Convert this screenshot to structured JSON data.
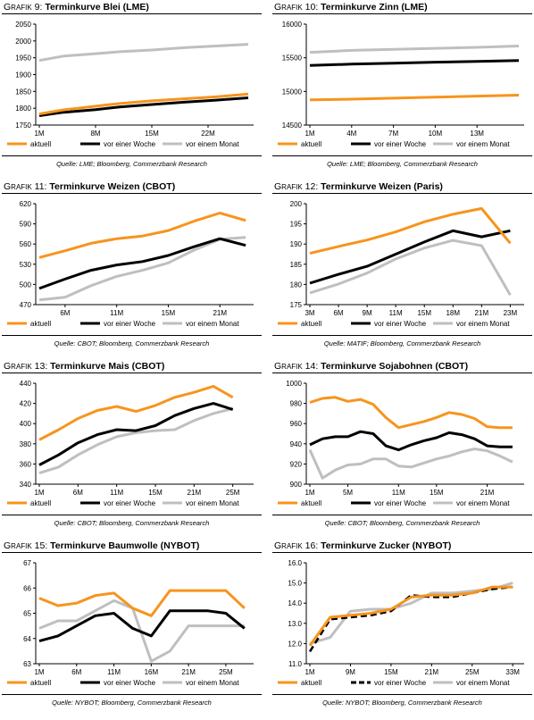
{
  "colors": {
    "aktuell": "#F7941D",
    "woche": "#000000",
    "monat": "#BFBFBF"
  },
  "chart_data": [
    {
      "type": "line",
      "prefix": "Grafik 9",
      "title": "Terminkurve Blei (LME)",
      "source": "Quelle: LME; Bloomberg, Commerzbank Research",
      "ylim": [
        1750,
        2050
      ],
      "yticks": [
        1750,
        1800,
        1850,
        1900,
        1950,
        2000,
        2050
      ],
      "xlabels": [
        "1M",
        "8M",
        "15M",
        "22M"
      ],
      "xlabel_idx": [
        0,
        7,
        14,
        21
      ],
      "xmax": 26,
      "legend": [
        "aktuell",
        "vor einer Woche",
        "vor einem Monat"
      ],
      "series": [
        {
          "x": [
            0,
            3,
            7,
            10,
            14,
            18,
            22,
            26
          ],
          "values": [
            1783,
            1795,
            1806,
            1814,
            1822,
            1828,
            1834,
            1842
          ]
        },
        {
          "x": [
            0,
            3,
            7,
            10,
            14,
            18,
            22,
            26
          ],
          "values": [
            1778,
            1788,
            1796,
            1804,
            1811,
            1818,
            1824,
            1831
          ]
        },
        {
          "x": [
            0,
            3,
            7,
            10,
            14,
            18,
            22,
            26
          ],
          "values": [
            1942,
            1955,
            1962,
            1968,
            1973,
            1980,
            1985,
            1990
          ]
        }
      ]
    },
    {
      "type": "line",
      "prefix": "Grafik 10",
      "title": "Terminkurve Zinn (LME)",
      "source": "Quelle: LME; Bloomberg, Commerzbank Research",
      "ylim": [
        14500,
        16000
      ],
      "yticks": [
        14500,
        15000,
        15500,
        16000
      ],
      "xlabels": [
        "1M",
        "4M",
        "7M",
        "10M",
        "13M"
      ],
      "xlabel_idx": [
        0,
        3,
        6,
        9,
        12
      ],
      "xmax": 15,
      "legend": [
        "aktuell",
        "vor einer Woche",
        "vor einem Monat"
      ],
      "series": [
        {
          "x": [
            0,
            3,
            6,
            9,
            12,
            15
          ],
          "values": [
            14875,
            14885,
            14900,
            14915,
            14930,
            14945
          ]
        },
        {
          "x": [
            0,
            3,
            6,
            9,
            12,
            15
          ],
          "values": [
            15385,
            15405,
            15420,
            15435,
            15445,
            15460
          ]
        },
        {
          "x": [
            0,
            3,
            6,
            9,
            12,
            15
          ],
          "values": [
            15580,
            15610,
            15625,
            15640,
            15655,
            15675
          ]
        }
      ]
    },
    {
      "type": "line",
      "prefix": "Grafik 11",
      "title": "Terminkurve Weizen (CBOT)",
      "source": "Quelle: CBOT; Bloomberg, Commerzbank Research",
      "ylim": [
        470,
        620
      ],
      "yticks": [
        470,
        500,
        530,
        560,
        590,
        620
      ],
      "xlabels": [
        "6M",
        "11M",
        "15M",
        "21M"
      ],
      "xlabel_idx": [
        1,
        3,
        5,
        7
      ],
      "xmax": 8.1,
      "legend": [
        "aktuell",
        "vor einer Woche",
        "vor einem Monat"
      ],
      "series": [
        {
          "x": [
            0,
            1,
            2,
            3,
            4,
            5,
            6,
            7,
            8
          ],
          "values": [
            540,
            550,
            561,
            568,
            572,
            580,
            594,
            606,
            595
          ]
        },
        {
          "x": [
            0,
            1,
            2,
            3,
            4,
            5,
            6,
            7,
            8
          ],
          "values": [
            494,
            508,
            521,
            529,
            534,
            543,
            556,
            568,
            558
          ]
        },
        {
          "x": [
            0,
            1,
            2,
            3,
            4,
            5,
            6,
            7,
            8
          ],
          "values": [
            477,
            481,
            498,
            512,
            521,
            532,
            551,
            567,
            570
          ]
        }
      ]
    },
    {
      "type": "line",
      "prefix": "Grafik 12",
      "title": "Terminkurve Weizen (Paris)",
      "source": "Quelle: MATIF; Bloomberg, Commerzbank Research",
      "ylim": [
        175,
        200
      ],
      "yticks": [
        175,
        180,
        185,
        190,
        195,
        200
      ],
      "xlabels": [
        "3M",
        "6M",
        "9M",
        "11M",
        "15M",
        "18M",
        "21M",
        "23M"
      ],
      "xlabel_idx": [
        0,
        1,
        2,
        3,
        4,
        5,
        6,
        7
      ],
      "xmax": 7.3,
      "legend": [
        "aktuell",
        "vor einer Woche",
        "vor einem Monat"
      ],
      "series": [
        {
          "x": [
            0,
            1,
            2,
            3,
            4,
            5,
            6,
            7
          ],
          "values": [
            187.7,
            189.4,
            191.0,
            193.0,
            195.5,
            197.4,
            198.8,
            190.2
          ]
        },
        {
          "x": [
            0,
            1,
            2,
            3,
            4,
            5,
            6,
            7
          ],
          "values": [
            180.3,
            182.5,
            184.5,
            187.5,
            190.5,
            193.3,
            191.8,
            193.3
          ]
        },
        {
          "x": [
            0,
            1,
            2,
            3,
            4,
            5,
            6,
            7
          ],
          "values": [
            177.9,
            180.1,
            182.8,
            186.3,
            189.0,
            190.9,
            189.6,
            177.4
          ]
        }
      ]
    },
    {
      "type": "line",
      "prefix": "Grafik 13",
      "title": "Terminkurve Mais (CBOT)",
      "source": "Quelle: CBOT; Bloomberg, Commerzbank Research",
      "ylim": [
        340,
        440
      ],
      "yticks": [
        340,
        360,
        380,
        400,
        420,
        440
      ],
      "xlabels": [
        "1M",
        "6M",
        "11M",
        "15M",
        "21M",
        "25M"
      ],
      "xlabel_idx": [
        0,
        2,
        4,
        6,
        8,
        10
      ],
      "xmax": 10.8,
      "legend": [
        "aktuell",
        "vor einer Woche",
        "vor einem Monat"
      ],
      "series": [
        {
          "x": [
            0,
            1,
            2,
            3,
            4,
            5,
            6,
            7,
            8,
            9,
            10
          ],
          "values": [
            384,
            394,
            405,
            413,
            417,
            412,
            418,
            426,
            431,
            437,
            426
          ]
        },
        {
          "x": [
            0,
            1,
            2,
            3,
            4,
            5,
            6,
            7,
            8,
            9,
            10
          ],
          "values": [
            359,
            369,
            381,
            389,
            394,
            393,
            398,
            408,
            415,
            420,
            414
          ]
        },
        {
          "x": [
            0,
            1,
            2,
            3,
            4,
            5,
            6,
            7,
            8,
            9,
            10
          ],
          "values": [
            351,
            357,
            369,
            379,
            387,
            391,
            393,
            394,
            403,
            410,
            415
          ]
        }
      ]
    },
    {
      "type": "line",
      "prefix": "Grafik 14",
      "title": "Terminkurve Sojabohnen (CBOT)",
      "source": "Quelle: CBOT; Bloomberg, Commerzbank Research",
      "ylim": [
        900,
        1000
      ],
      "yticks": [
        900,
        920,
        940,
        960,
        980,
        1000
      ],
      "xlabels": [
        "1M",
        "5M",
        "11M",
        "15M",
        "21M"
      ],
      "xlabel_idx": [
        0,
        3,
        7,
        10,
        14
      ],
      "xmax": 16.5,
      "legend": [
        "aktuell",
        "vor einer Woche",
        "vor einem Monat"
      ],
      "series": [
        {
          "x": [
            0,
            1,
            2,
            3,
            4,
            5,
            6,
            7,
            8,
            9,
            10,
            11,
            12,
            13,
            14,
            15,
            16
          ],
          "values": [
            981,
            985,
            986,
            982,
            984,
            979,
            966,
            956,
            959,
            962,
            966,
            971,
            969,
            965,
            957,
            956,
            956
          ]
        },
        {
          "x": [
            0,
            1,
            2,
            3,
            4,
            5,
            6,
            7,
            8,
            9,
            10,
            11,
            12,
            13,
            14,
            15,
            16
          ],
          "values": [
            939,
            945,
            947,
            947,
            952,
            950,
            938,
            934,
            939,
            943,
            946,
            951,
            949,
            945,
            938,
            937,
            937
          ]
        },
        {
          "x": [
            0,
            1,
            2,
            3,
            4,
            5,
            6,
            7,
            8,
            9,
            10,
            11,
            12,
            13,
            14,
            15,
            16
          ],
          "values": [
            934,
            906,
            914,
            919,
            920,
            925,
            925,
            918,
            917,
            921,
            925,
            928,
            932,
            935,
            933,
            928,
            922
          ]
        }
      ]
    },
    {
      "type": "line",
      "prefix": "Grafik 15",
      "title": "Terminkurve Baumwolle (NYBOT)",
      "source": "Quelle: NYBOT; Bloomberg, Commerzbank Research",
      "ylim": [
        63,
        67
      ],
      "yticks": [
        63,
        64,
        65,
        66,
        67
      ],
      "xlabels": [
        "1M",
        "6M",
        "11M",
        "16M",
        "21M",
        "25M"
      ],
      "xlabel_idx": [
        0,
        2,
        4,
        6,
        8,
        10
      ],
      "xmax": 11.2,
      "legend": [
        "aktuell",
        "vor einer Woche",
        "vor einem Monat"
      ],
      "series": [
        {
          "x": [
            0,
            1,
            2,
            3,
            4,
            5,
            6,
            7,
            8,
            9,
            10,
            11
          ],
          "values": [
            65.6,
            65.3,
            65.4,
            65.7,
            65.8,
            65.2,
            64.9,
            65.9,
            65.9,
            65.9,
            65.9,
            65.2
          ]
        },
        {
          "x": [
            0,
            1,
            2,
            3,
            4,
            5,
            6,
            7,
            8,
            9,
            10,
            11
          ],
          "values": [
            63.9,
            64.1,
            64.5,
            64.9,
            65.0,
            64.4,
            64.1,
            65.1,
            65.1,
            65.1,
            65.0,
            64.4
          ]
        },
        {
          "x": [
            0,
            1,
            2,
            3,
            4,
            5,
            6,
            7,
            8,
            9,
            10,
            11
          ],
          "values": [
            64.4,
            64.7,
            64.7,
            65.1,
            65.5,
            65.2,
            63.1,
            63.5,
            64.5,
            64.5,
            64.5,
            64.5
          ]
        }
      ]
    },
    {
      "type": "line",
      "prefix": "Grafik 16",
      "title": "Terminkurve Zucker (NYBOT)",
      "source": "Quelle: NYBOT; Bloomberg, Commerzbank Research",
      "ylim": [
        11.0,
        16.0
      ],
      "yticks": [
        11.0,
        12.0,
        13.0,
        14.0,
        15.0,
        16.0
      ],
      "ytick_labels": [
        "11.0",
        "12.0",
        "13.0",
        "14.0",
        "15.0",
        "16.0"
      ],
      "xlabels": [
        "1M",
        "9M",
        "15M",
        "21M",
        "25M",
        "33M"
      ],
      "xlabel_idx": [
        0,
        2,
        4,
        6,
        8,
        10
      ],
      "xmax": 10.3,
      "legend": [
        "aktuell",
        "vor einer Woche",
        "vor einem Monat"
      ],
      "dashed_series": 1,
      "series": [
        {
          "x": [
            0,
            1,
            2,
            3,
            4,
            5,
            6,
            7,
            8,
            9,
            10
          ],
          "values": [
            11.9,
            13.3,
            13.4,
            13.5,
            13.7,
            14.3,
            14.4,
            14.4,
            14.5,
            14.8,
            14.8
          ]
        },
        {
          "x": [
            0,
            1,
            2,
            3,
            4,
            5,
            6,
            7,
            8,
            9,
            10
          ],
          "values": [
            11.6,
            13.2,
            13.3,
            13.4,
            13.6,
            14.4,
            14.3,
            14.3,
            14.5,
            14.7,
            14.8
          ]
        },
        {
          "x": [
            0,
            1,
            2,
            3,
            4,
            5,
            6,
            7,
            8,
            9,
            10
          ],
          "values": [
            12.0,
            12.3,
            13.6,
            13.7,
            13.7,
            14.0,
            14.5,
            14.5,
            14.6,
            14.7,
            15.0
          ]
        }
      ]
    }
  ]
}
